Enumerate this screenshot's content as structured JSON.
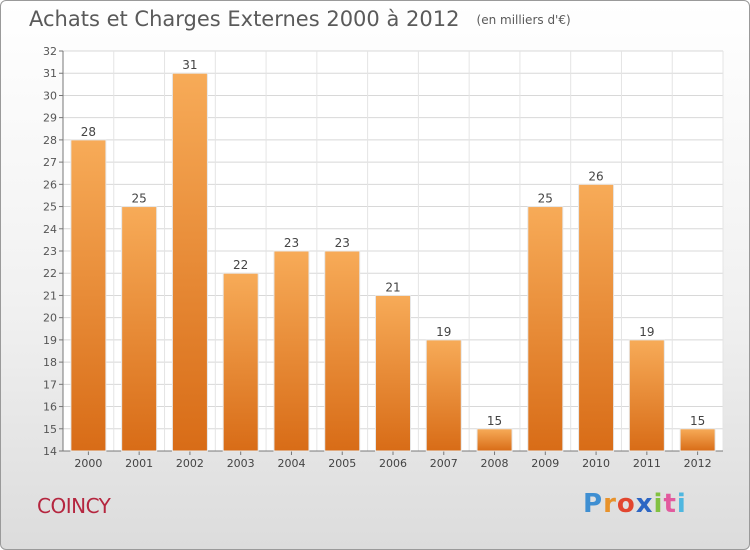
{
  "title": "Achats et Charges Externes 2000 à 2012",
  "subtitle": "(en milliers d'€)",
  "place": "COINCY",
  "logo": {
    "letters": [
      "P",
      "r",
      "o",
      "x",
      "i",
      "t",
      "i"
    ],
    "colors": [
      "#3f8fd2",
      "#e8922a",
      "#e2462f",
      "#2d66c4",
      "#82c141",
      "#e25a9e",
      "#4fb7e0"
    ]
  },
  "colors": {
    "bar_light": "#f7ab58",
    "bar_dark": "#d86c17",
    "place": "#b5263f"
  },
  "chart_data": {
    "type": "bar",
    "categories": [
      "2000",
      "2001",
      "2002",
      "2003",
      "2004",
      "2005",
      "2006",
      "2007",
      "2008",
      "2009",
      "2010",
      "2011",
      "2012"
    ],
    "values": [
      28,
      25,
      31,
      22,
      23,
      23,
      21,
      19,
      15,
      25,
      26,
      19,
      15
    ],
    "ylim": [
      14,
      32
    ],
    "yticks": [
      14,
      15,
      16,
      17,
      18,
      19,
      20,
      21,
      22,
      23,
      24,
      25,
      26,
      27,
      28,
      29,
      30,
      31,
      32
    ],
    "grid": true,
    "data_labels": true
  }
}
